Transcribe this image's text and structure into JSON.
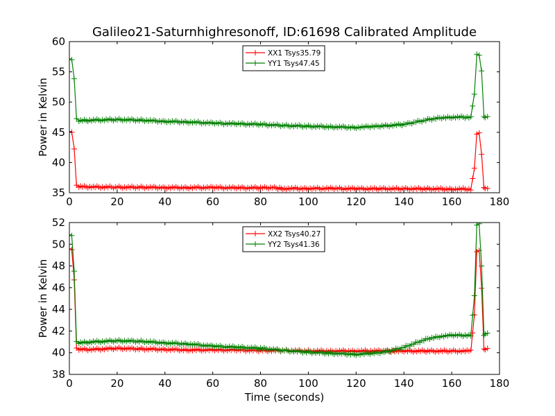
{
  "figure": {
    "title": "Galileo21-Saturnhighresonoff, ID:61698 Calibrated Amplitude",
    "xlabel": "Time (seconds)"
  },
  "chart_data": [
    {
      "type": "line",
      "ylabel": "Power in Kelvin",
      "xlim": [
        0,
        180
      ],
      "ylim": [
        35,
        60
      ],
      "xticks": [
        0,
        20,
        40,
        60,
        80,
        100,
        120,
        140,
        160,
        180
      ],
      "yticks": [
        35,
        40,
        45,
        50,
        55,
        60
      ],
      "legend_position": "top-center",
      "series": [
        {
          "name": "XX1 Tsys35.79",
          "color": "#ff0000",
          "x": [
            0,
            1,
            2,
            3,
            4,
            10,
            20,
            30,
            40,
            50,
            60,
            70,
            80,
            85,
            88,
            90,
            100,
            110,
            120,
            130,
            140,
            150,
            160,
            168,
            169.5,
            170.5,
            171.5,
            172.5,
            173.5,
            174,
            175
          ],
          "y": [
            45.0,
            45.0,
            42.4,
            36.2,
            36.0,
            35.95,
            35.9,
            35.9,
            35.85,
            35.85,
            35.85,
            35.8,
            35.8,
            35.85,
            35.7,
            35.7,
            35.7,
            35.7,
            35.65,
            35.65,
            35.65,
            35.65,
            35.6,
            35.6,
            39.0,
            44.8,
            44.8,
            41.4,
            35.7,
            35.7,
            35.7
          ]
        },
        {
          "name": "YY1 Tsys47.45",
          "color": "#008000",
          "x": [
            0,
            1,
            2,
            3,
            4,
            10,
            20,
            30,
            40,
            50,
            60,
            70,
            80,
            90,
            100,
            110,
            120,
            125,
            130,
            140,
            145,
            150,
            155,
            160,
            168,
            169.5,
            170.5,
            171.5,
            172.5,
            173.5,
            174,
            175
          ],
          "y": [
            57.0,
            57.0,
            54.0,
            47.2,
            46.9,
            47.0,
            47.1,
            47.0,
            46.8,
            46.7,
            46.5,
            46.4,
            46.3,
            46.1,
            46.0,
            45.9,
            45.8,
            45.9,
            46.0,
            46.3,
            46.7,
            47.1,
            47.4,
            47.5,
            47.5,
            51.4,
            57.8,
            57.8,
            55.0,
            47.6,
            47.6,
            47.6
          ]
        }
      ]
    },
    {
      "type": "line",
      "ylabel": "Power in Kelvin",
      "xlim": [
        0,
        180
      ],
      "ylim": [
        38,
        52
      ],
      "xticks": [
        0,
        20,
        40,
        60,
        80,
        100,
        120,
        140,
        160,
        180
      ],
      "yticks": [
        38,
        40,
        42,
        44,
        46,
        48,
        50,
        52
      ],
      "legend_position": "top-center",
      "series": [
        {
          "name": "XX2 Tsys40.27",
          "color": "#ff0000",
          "x": [
            0,
            1,
            2,
            3,
            4,
            10,
            20,
            30,
            40,
            50,
            60,
            70,
            80,
            90,
            100,
            110,
            120,
            130,
            140,
            150,
            160,
            168,
            169.5,
            170.5,
            171.5,
            172.5,
            173.5,
            174,
            175
          ],
          "y": [
            49.5,
            49.5,
            46.8,
            40.4,
            40.3,
            40.3,
            40.4,
            40.35,
            40.3,
            40.25,
            40.25,
            40.25,
            40.2,
            40.2,
            40.15,
            40.15,
            40.15,
            40.15,
            40.15,
            40.15,
            40.15,
            40.15,
            43.5,
            49.4,
            49.4,
            46.0,
            40.3,
            40.3,
            40.4
          ]
        },
        {
          "name": "YY2 Tsys41.36",
          "color": "#008000",
          "x": [
            0,
            1,
            2,
            3,
            4,
            10,
            20,
            30,
            40,
            50,
            60,
            70,
            80,
            90,
            100,
            110,
            120,
            125,
            130,
            135,
            140,
            145,
            150,
            155,
            160,
            168,
            169.5,
            170.5,
            171.5,
            172.5,
            173.5,
            174,
            175
          ],
          "y": [
            50.8,
            50.8,
            47.6,
            41.0,
            40.9,
            41.0,
            41.1,
            41.05,
            40.9,
            40.8,
            40.6,
            40.5,
            40.4,
            40.2,
            40.05,
            39.95,
            39.85,
            39.9,
            40.0,
            40.2,
            40.5,
            40.9,
            41.3,
            41.5,
            41.6,
            41.6,
            45.2,
            51.8,
            51.8,
            48.0,
            41.7,
            41.7,
            41.8
          ]
        }
      ]
    }
  ]
}
